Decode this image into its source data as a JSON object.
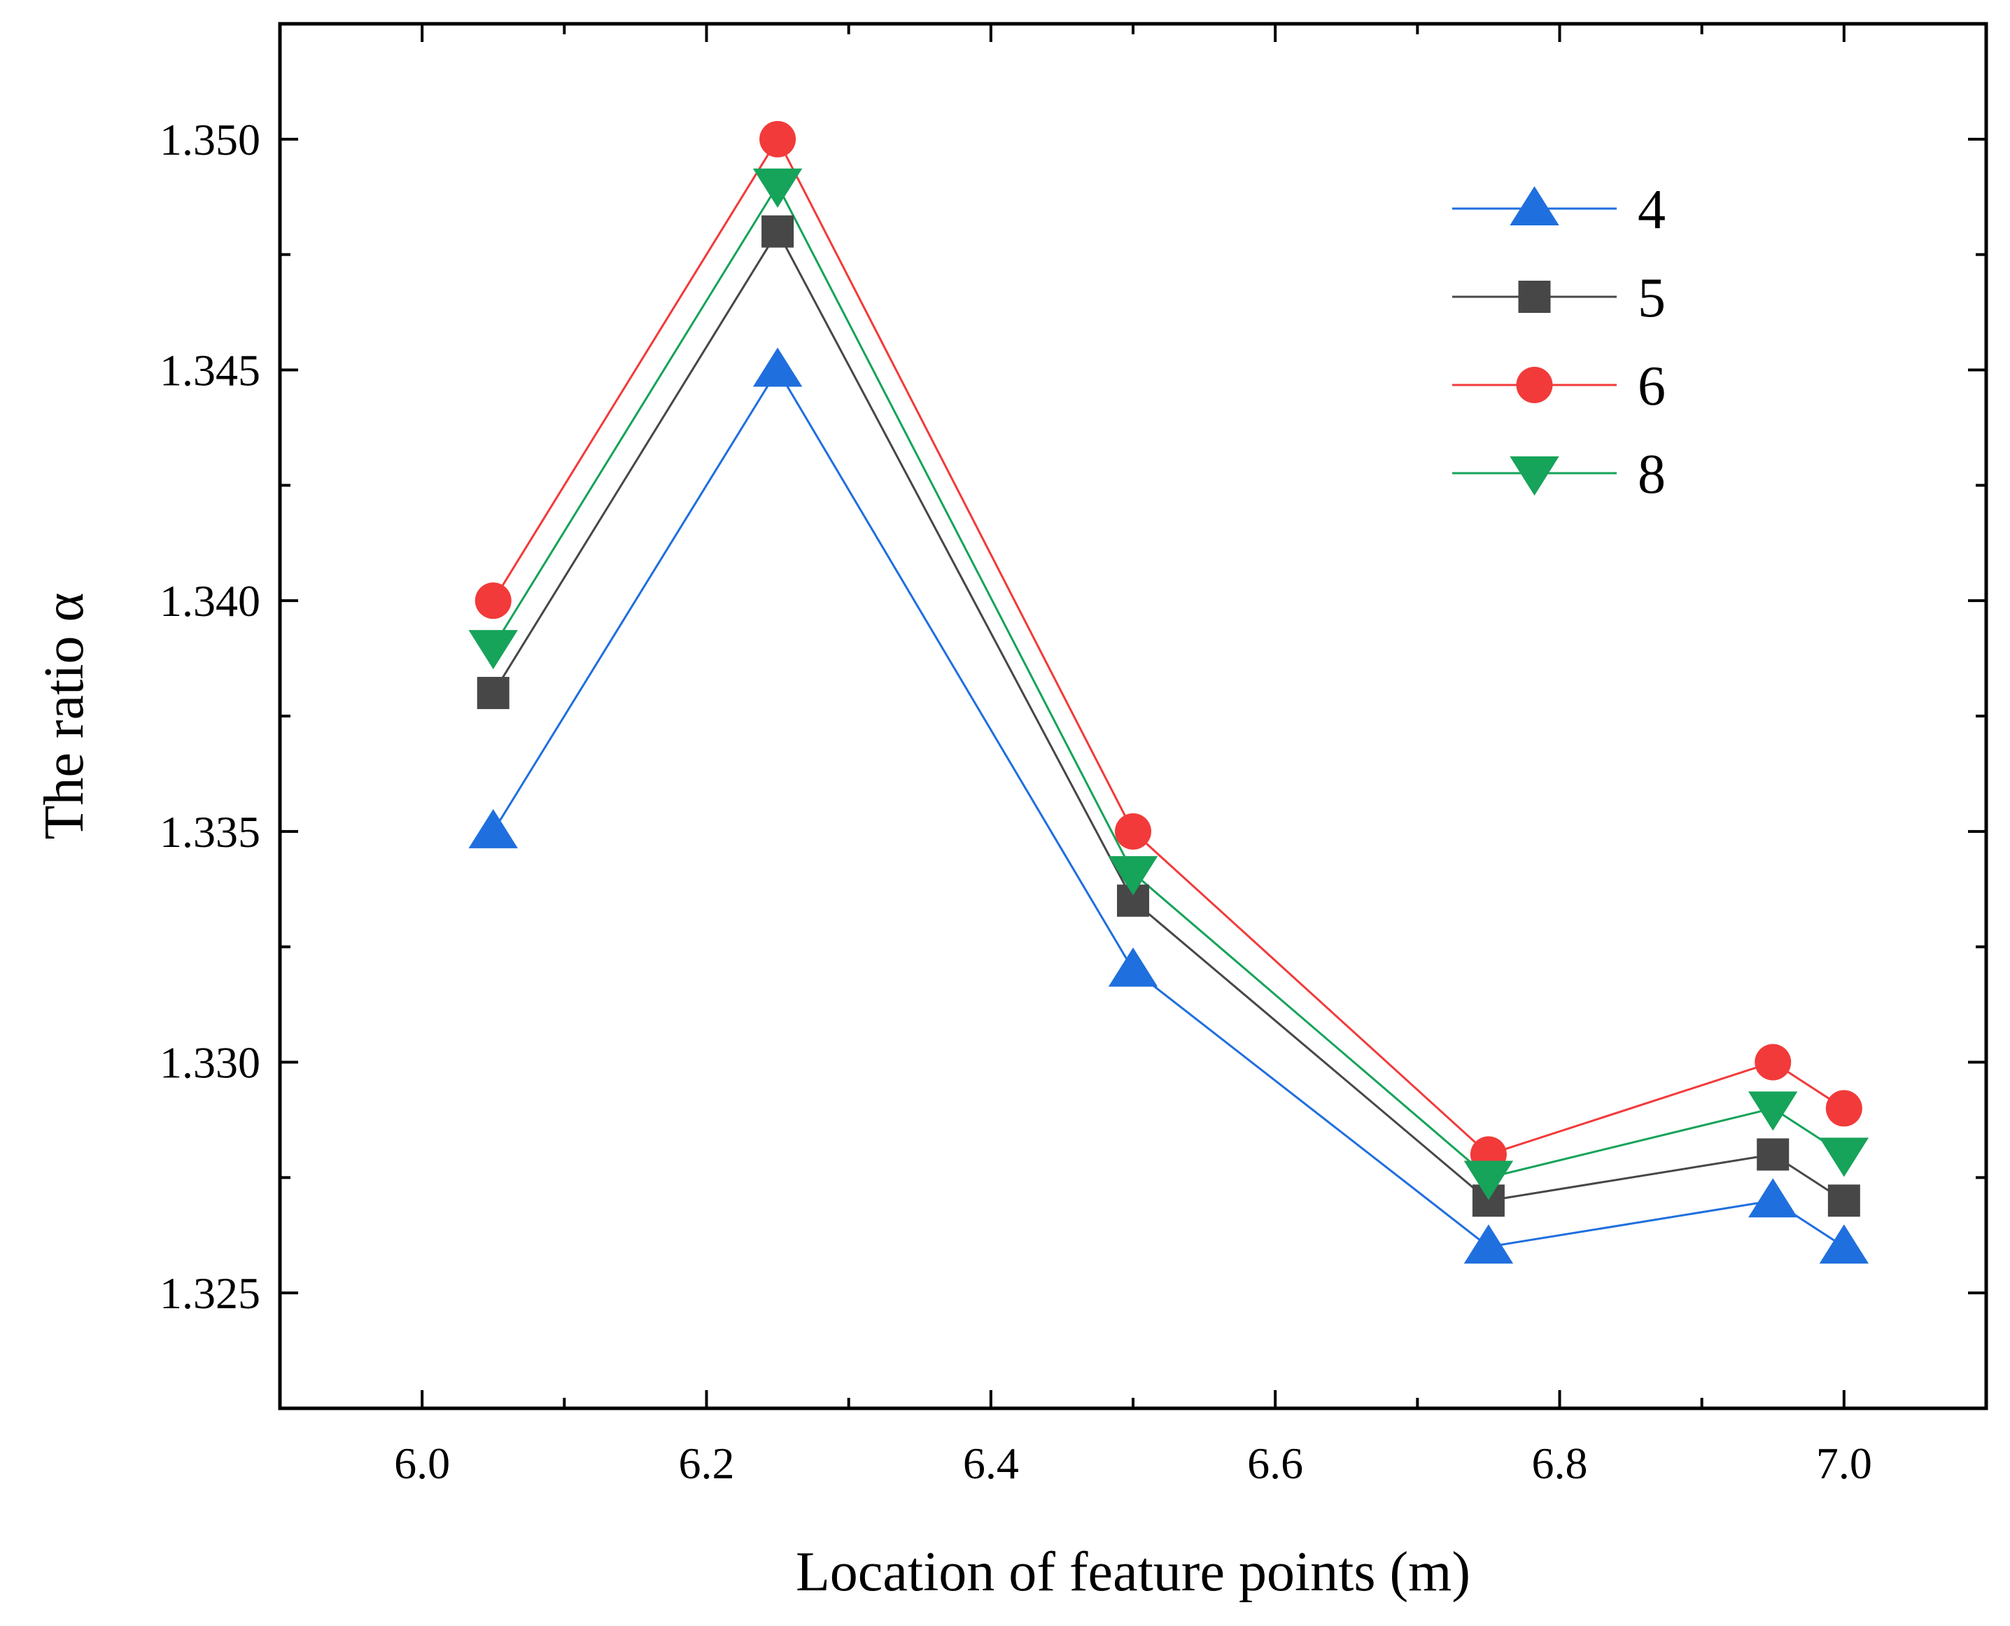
{
  "chart_data": {
    "type": "line",
    "title": "",
    "xlabel": "Location of feature points (m)",
    "ylabel": "The ratio α",
    "xlim": [
      5.9,
      7.1
    ],
    "ylim": [
      1.3225,
      1.3525
    ],
    "xticks": [
      6.0,
      6.2,
      6.4,
      6.6,
      6.8,
      7.0
    ],
    "xtick_labels": [
      "6.0",
      "6.2",
      "6.4",
      "6.6",
      "6.8",
      "7.0"
    ],
    "yticks": [
      1.325,
      1.33,
      1.335,
      1.34,
      1.345,
      1.35
    ],
    "ytick_labels": [
      "1.325",
      "1.330",
      "1.335",
      "1.340",
      "1.345",
      "1.350"
    ],
    "grid": false,
    "legend_position": "top-right",
    "x": [
      6.05,
      6.25,
      6.5,
      6.75,
      6.95,
      7.0
    ],
    "series": [
      {
        "name": "4",
        "marker": "triangle-up",
        "color": "#1F6FDE",
        "values": [
          1.335,
          1.345,
          1.332,
          1.326,
          1.327,
          1.326
        ]
      },
      {
        "name": "5",
        "marker": "square",
        "color": "#474747",
        "values": [
          1.338,
          1.348,
          1.3335,
          1.327,
          1.328,
          1.327
        ]
      },
      {
        "name": "6",
        "marker": "circle",
        "color": "#F23A3A",
        "values": [
          1.34,
          1.35,
          1.335,
          1.328,
          1.33,
          1.329
        ]
      },
      {
        "name": "8",
        "marker": "triangle-down",
        "color": "#16A35A",
        "values": [
          1.339,
          1.349,
          1.3341,
          1.3275,
          1.329,
          1.328
        ]
      }
    ]
  }
}
